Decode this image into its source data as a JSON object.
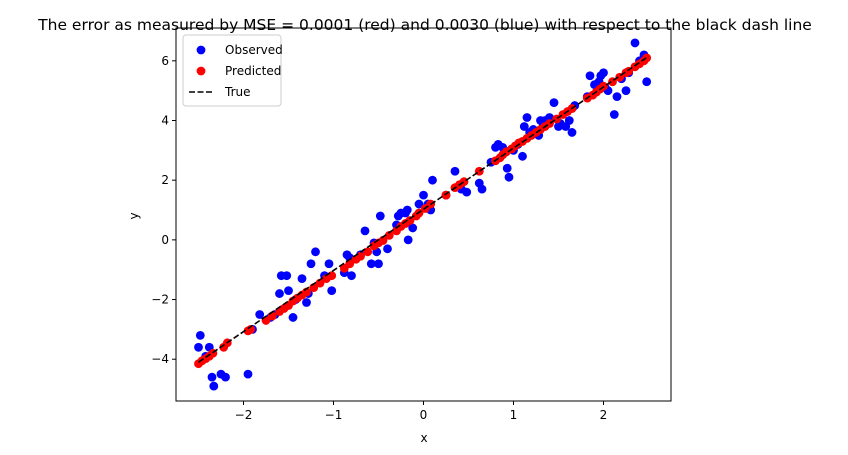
{
  "chart_data": {
    "type": "scatter",
    "title": "The error as measured by MSE = 0.0001 (red) and 0.0030 (blue) with respect to the black dash line",
    "xlabel": "x",
    "ylabel": "y",
    "xlim": [
      -2.75,
      2.75
    ],
    "ylim": [
      -5.4,
      7.1
    ],
    "xticks": [
      -2,
      -1,
      0,
      1,
      2
    ],
    "yticks": [
      -4,
      -2,
      0,
      2,
      4,
      6
    ],
    "xtick_labels": [
      "−2",
      "−1",
      "0",
      "1",
      "2"
    ],
    "ytick_labels": [
      "−4",
      "−2",
      "0",
      "2",
      "4",
      "6"
    ],
    "grid": false,
    "legend_position": "top-left",
    "legend": [
      {
        "label": "Observed",
        "marker": "circle",
        "color": "#0000ff"
      },
      {
        "label": "Predicted",
        "marker": "circle",
        "color": "#ff0000"
      },
      {
        "label": "True",
        "marker": "dashed-line",
        "color": "#000000"
      }
    ],
    "series": [
      {
        "name": "Observed",
        "color": "#0000ff",
        "points": [
          [
            -2.5,
            -3.6
          ],
          [
            -2.48,
            -3.2
          ],
          [
            -2.42,
            -3.9
          ],
          [
            -2.38,
            -3.6
          ],
          [
            -2.35,
            -4.6
          ],
          [
            -2.33,
            -4.9
          ],
          [
            -2.25,
            -4.5
          ],
          [
            -2.2,
            -4.6
          ],
          [
            -1.95,
            -4.5
          ],
          [
            -1.9,
            -3.0
          ],
          [
            -1.82,
            -2.5
          ],
          [
            -1.7,
            -2.6
          ],
          [
            -1.65,
            -2.5
          ],
          [
            -1.6,
            -1.8
          ],
          [
            -1.58,
            -1.2
          ],
          [
            -1.52,
            -1.2
          ],
          [
            -1.5,
            -1.7
          ],
          [
            -1.45,
            -2.6
          ],
          [
            -1.42,
            -2.0
          ],
          [
            -1.35,
            -1.3
          ],
          [
            -1.3,
            -2.1
          ],
          [
            -1.28,
            -1.8
          ],
          [
            -1.25,
            -0.8
          ],
          [
            -1.2,
            -0.4
          ],
          [
            -1.1,
            -1.2
          ],
          [
            -1.05,
            -0.8
          ],
          [
            -1.02,
            -1.7
          ],
          [
            -0.88,
            -1.1
          ],
          [
            -0.85,
            -0.5
          ],
          [
            -0.82,
            -0.6
          ],
          [
            -0.8,
            -1.2
          ],
          [
            -0.7,
            -0.5
          ],
          [
            -0.65,
            0.3
          ],
          [
            -0.58,
            -0.8
          ],
          [
            -0.55,
            -0.1
          ],
          [
            -0.52,
            -0.4
          ],
          [
            -0.5,
            -0.8
          ],
          [
            -0.48,
            0.8
          ],
          [
            -0.4,
            -0.3
          ],
          [
            -0.3,
            0.5
          ],
          [
            -0.28,
            0.8
          ],
          [
            -0.25,
            0.9
          ],
          [
            -0.2,
            0.9
          ],
          [
            -0.18,
            1.0
          ],
          [
            -0.17,
            0.0
          ],
          [
            -0.12,
            0.4
          ],
          [
            -0.05,
            1.2
          ],
          [
            0.0,
            1.5
          ],
          [
            0.05,
            1.2
          ],
          [
            0.08,
            1.0
          ],
          [
            0.1,
            2.0
          ],
          [
            0.25,
            1.5
          ],
          [
            0.35,
            2.3
          ],
          [
            0.42,
            1.7
          ],
          [
            0.48,
            1.6
          ],
          [
            0.62,
            1.9
          ],
          [
            0.65,
            1.7
          ],
          [
            0.75,
            2.6
          ],
          [
            0.8,
            3.1
          ],
          [
            0.83,
            3.2
          ],
          [
            0.88,
            3.1
          ],
          [
            0.9,
            3.0
          ],
          [
            0.93,
            2.4
          ],
          [
            0.95,
            2.1
          ],
          [
            1.0,
            3.0
          ],
          [
            1.05,
            3.2
          ],
          [
            1.1,
            2.8
          ],
          [
            1.12,
            3.8
          ],
          [
            1.15,
            4.1
          ],
          [
            1.18,
            3.6
          ],
          [
            1.22,
            3.7
          ],
          [
            1.28,
            3.5
          ],
          [
            1.3,
            4.0
          ],
          [
            1.33,
            3.9
          ],
          [
            1.35,
            4.0
          ],
          [
            1.4,
            4.1
          ],
          [
            1.45,
            4.6
          ],
          [
            1.5,
            3.8
          ],
          [
            1.52,
            3.9
          ],
          [
            1.58,
            3.8
          ],
          [
            1.62,
            4.0
          ],
          [
            1.65,
            3.6
          ],
          [
            1.68,
            4.5
          ],
          [
            1.82,
            4.8
          ],
          [
            1.85,
            5.5
          ],
          [
            1.9,
            5.2
          ],
          [
            1.95,
            5.3
          ],
          [
            1.97,
            5.5
          ],
          [
            2.0,
            5.6
          ],
          [
            2.02,
            5.1
          ],
          [
            2.05,
            5.0
          ],
          [
            2.12,
            4.2
          ],
          [
            2.15,
            4.8
          ],
          [
            2.2,
            5.4
          ],
          [
            2.25,
            5.0
          ],
          [
            2.28,
            5.6
          ],
          [
            2.35,
            6.6
          ],
          [
            2.4,
            6.0
          ],
          [
            2.45,
            6.2
          ],
          [
            2.48,
            5.3
          ]
        ]
      },
      {
        "name": "Predicted",
        "color": "#ff0000",
        "points": [
          [
            -2.5,
            -4.15
          ],
          [
            -2.46,
            -4.05
          ],
          [
            -2.42,
            -3.98
          ],
          [
            -2.38,
            -3.9
          ],
          [
            -2.34,
            -3.8
          ],
          [
            -2.22,
            -3.6
          ],
          [
            -2.18,
            -3.45
          ],
          [
            -1.95,
            -3.05
          ],
          [
            -1.92,
            -3.0
          ],
          [
            -1.75,
            -2.7
          ],
          [
            -1.68,
            -2.55
          ],
          [
            -1.6,
            -2.4
          ],
          [
            -1.55,
            -2.3
          ],
          [
            -1.5,
            -2.2
          ],
          [
            -1.45,
            -2.05
          ],
          [
            -1.4,
            -1.95
          ],
          [
            -1.35,
            -1.85
          ],
          [
            -1.3,
            -1.75
          ],
          [
            -1.22,
            -1.6
          ],
          [
            -1.15,
            -1.45
          ],
          [
            -1.08,
            -1.3
          ],
          [
            -1.02,
            -1.2
          ],
          [
            -0.88,
            -0.95
          ],
          [
            -0.82,
            -0.8
          ],
          [
            -0.75,
            -0.65
          ],
          [
            -0.7,
            -0.55
          ],
          [
            -0.62,
            -0.4
          ],
          [
            -0.55,
            -0.2
          ],
          [
            -0.5,
            -0.1
          ],
          [
            -0.45,
            -0.02
          ],
          [
            -0.38,
            0.15
          ],
          [
            -0.3,
            0.3
          ],
          [
            -0.25,
            0.45
          ],
          [
            -0.2,
            0.55
          ],
          [
            -0.15,
            0.65
          ],
          [
            -0.08,
            0.8
          ],
          [
            -0.05,
            0.9
          ],
          [
            0.02,
            1.05
          ],
          [
            0.08,
            1.2
          ],
          [
            0.25,
            1.5
          ],
          [
            0.35,
            1.75
          ],
          [
            0.4,
            1.85
          ],
          [
            0.45,
            1.95
          ],
          [
            0.62,
            2.3
          ],
          [
            0.8,
            2.65
          ],
          [
            0.85,
            2.75
          ],
          [
            0.88,
            2.85
          ],
          [
            0.92,
            2.95
          ],
          [
            0.98,
            3.05
          ],
          [
            1.02,
            3.15
          ],
          [
            1.06,
            3.25
          ],
          [
            1.1,
            3.3
          ],
          [
            1.15,
            3.4
          ],
          [
            1.2,
            3.5
          ],
          [
            1.25,
            3.6
          ],
          [
            1.3,
            3.7
          ],
          [
            1.35,
            3.8
          ],
          [
            1.4,
            3.9
          ],
          [
            1.48,
            4.05
          ],
          [
            1.55,
            4.2
          ],
          [
            1.6,
            4.3
          ],
          [
            1.65,
            4.4
          ],
          [
            1.82,
            4.75
          ],
          [
            1.88,
            4.85
          ],
          [
            1.92,
            4.95
          ],
          [
            1.96,
            5.05
          ],
          [
            2.0,
            5.15
          ],
          [
            2.1,
            5.3
          ],
          [
            2.18,
            5.45
          ],
          [
            2.25,
            5.6
          ],
          [
            2.28,
            5.65
          ],
          [
            2.35,
            5.8
          ],
          [
            2.4,
            5.9
          ],
          [
            2.45,
            6.0
          ],
          [
            2.48,
            6.1
          ]
        ]
      },
      {
        "name": "True",
        "color": "#000000",
        "style": "dashed",
        "points": [
          [
            -2.5,
            -4.1
          ],
          [
            2.5,
            6.15
          ]
        ]
      }
    ]
  }
}
